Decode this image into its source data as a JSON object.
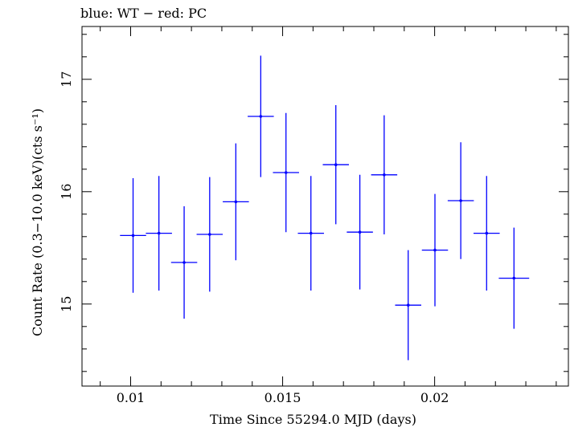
{
  "chart_data": {
    "type": "scatter",
    "title": "blue: WT − red: PC",
    "xlabel": "Time Since 55294.0 MJD (days)",
    "ylabel": "Count Rate (0.3−10.0 keV)(cts s⁻¹)",
    "xlim": [
      0.0084,
      0.0244
    ],
    "ylim": [
      14.27,
      17.47
    ],
    "xticks": [
      0.01,
      0.015,
      0.02
    ],
    "xtick_labels": [
      "0.01",
      "0.015",
      "0.02"
    ],
    "yticks": [
      15,
      16,
      17
    ],
    "ytick_labels": [
      "15",
      "16",
      "17"
    ],
    "grid": false,
    "series": [
      {
        "color": "#0000ff",
        "points": [
          {
            "x": 0.01008,
            "y": 15.61,
            "xerr": 0.00043,
            "yerr": 0.51
          },
          {
            "x": 0.01093,
            "y": 15.63,
            "xerr": 0.00043,
            "yerr": 0.51
          },
          {
            "x": 0.01176,
            "y": 15.37,
            "xerr": 0.00043,
            "yerr": 0.5
          },
          {
            "x": 0.0126,
            "y": 15.62,
            "xerr": 0.00043,
            "yerr": 0.51
          },
          {
            "x": 0.01346,
            "y": 15.91,
            "xerr": 0.00043,
            "yerr": 0.52
          },
          {
            "x": 0.01428,
            "y": 16.67,
            "xerr": 0.00043,
            "yerr": 0.54
          },
          {
            "x": 0.01511,
            "y": 16.17,
            "xerr": 0.00043,
            "yerr": 0.53
          },
          {
            "x": 0.01593,
            "y": 15.63,
            "xerr": 0.00043,
            "yerr": 0.51
          },
          {
            "x": 0.01675,
            "y": 16.24,
            "xerr": 0.00043,
            "yerr": 0.53
          },
          {
            "x": 0.01754,
            "y": 15.64,
            "xerr": 0.00043,
            "yerr": 0.51
          },
          {
            "x": 0.01834,
            "y": 16.15,
            "xerr": 0.00043,
            "yerr": 0.53
          },
          {
            "x": 0.01913,
            "y": 14.99,
            "xerr": 0.00043,
            "yerr": 0.49
          },
          {
            "x": 0.02001,
            "y": 15.48,
            "xerr": 0.00043,
            "yerr": 0.5
          },
          {
            "x": 0.02086,
            "y": 15.92,
            "xerr": 0.00043,
            "yerr": 0.52
          },
          {
            "x": 0.02171,
            "y": 15.63,
            "xerr": 0.00043,
            "yerr": 0.51
          },
          {
            "x": 0.02261,
            "y": 15.23,
            "xerr": 0.0005,
            "yerr": 0.45
          }
        ]
      }
    ]
  }
}
